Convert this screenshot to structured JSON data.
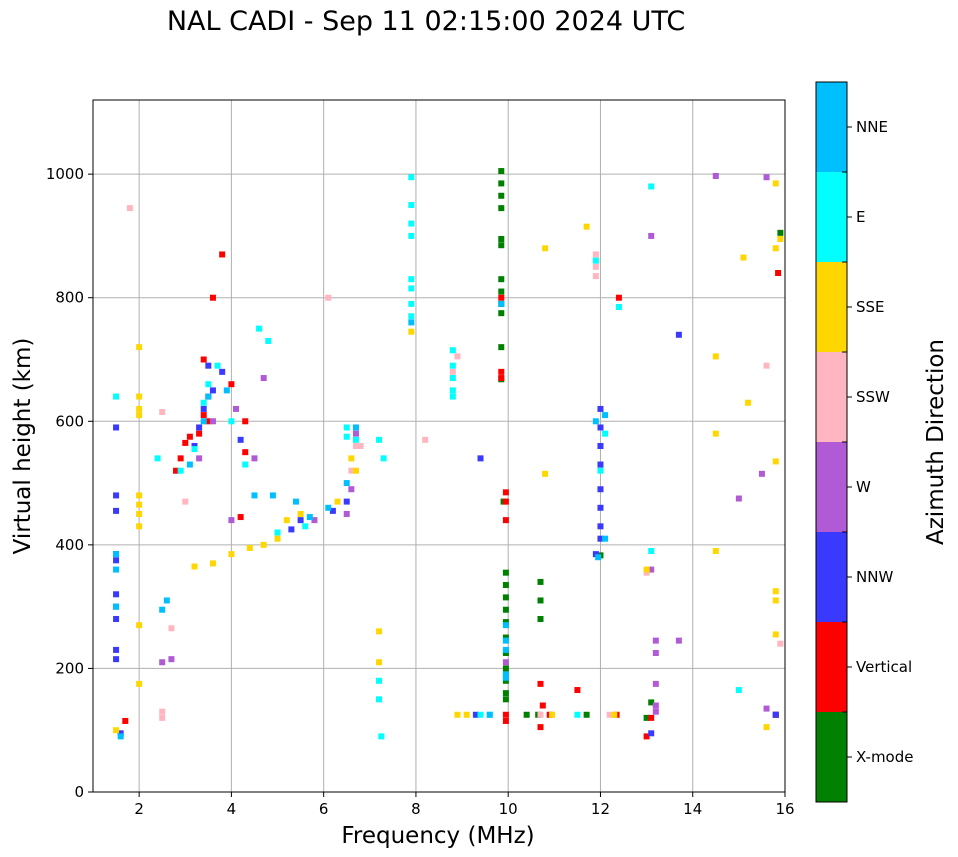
{
  "chart_data": {
    "type": "scatter",
    "title": "NAL CADI - Sep 11 02:15:00 2024 UTC",
    "xlabel": "Frequency (MHz)",
    "ylabel": "Virtual height (km)",
    "xlim": [
      1,
      16
    ],
    "ylim": [
      0,
      1120
    ],
    "xticks": [
      2,
      4,
      6,
      8,
      10,
      12,
      14,
      16
    ],
    "yticks": [
      0,
      200,
      400,
      600,
      800,
      1000
    ],
    "grid": true,
    "colorbar": {
      "label": "Azimuth Direction",
      "categories": [
        {
          "name": "X-mode",
          "color": "#008000"
        },
        {
          "name": "Vertical",
          "color": "#ff0000"
        },
        {
          "name": "NNW",
          "color": "#3a3aff"
        },
        {
          "name": "W",
          "color": "#b05ad6"
        },
        {
          "name": "SSW",
          "color": "#ffb6c1"
        },
        {
          "name": "SSE",
          "color": "#ffd700"
        },
        {
          "name": "E",
          "color": "#00ffff"
        },
        {
          "name": "NNE",
          "color": "#00bfff"
        }
      ]
    },
    "series": [
      {
        "name": "X-mode",
        "points": [
          [
            9.85,
            1005
          ],
          [
            9.85,
            985
          ],
          [
            9.85,
            965
          ],
          [
            9.85,
            945
          ],
          [
            9.85,
            895
          ],
          [
            9.85,
            885
          ],
          [
            9.85,
            830
          ],
          [
            9.85,
            810
          ],
          [
            9.85,
            790
          ],
          [
            9.85,
            775
          ],
          [
            9.85,
            720
          ],
          [
            9.85,
            668
          ],
          [
            9.95,
            355
          ],
          [
            9.95,
            335
          ],
          [
            9.95,
            315
          ],
          [
            9.95,
            295
          ],
          [
            9.95,
            275
          ],
          [
            9.95,
            250
          ],
          [
            9.95,
            225
          ],
          [
            9.95,
            200
          ],
          [
            9.95,
            180
          ],
          [
            9.95,
            160
          ],
          [
            9.95,
            150
          ],
          [
            9.9,
            470
          ],
          [
            10.4,
            125
          ],
          [
            10.65,
            125
          ],
          [
            10.7,
            340
          ],
          [
            10.7,
            310
          ],
          [
            10.7,
            280
          ],
          [
            11.7,
            125
          ],
          [
            12.0,
            383
          ],
          [
            13.0,
            120
          ],
          [
            13.1,
            145
          ],
          [
            15.9,
            905
          ],
          [
            15.8,
            125
          ]
        ]
      },
      {
        "name": "Vertical",
        "points": [
          [
            1.7,
            115
          ],
          [
            3.4,
            700
          ],
          [
            3.5,
            640
          ],
          [
            3.4,
            610
          ],
          [
            3.5,
            600
          ],
          [
            3.6,
            800
          ],
          [
            3.8,
            870
          ],
          [
            3.3,
            580
          ],
          [
            3.0,
            565
          ],
          [
            2.8,
            520
          ],
          [
            2.9,
            540
          ],
          [
            3.1,
            575
          ],
          [
            4.2,
            445
          ],
          [
            4.3,
            550
          ],
          [
            4.0,
            660
          ],
          [
            4.3,
            600
          ],
          [
            9.95,
            485
          ],
          [
            9.95,
            470
          ],
          [
            9.95,
            440
          ],
          [
            9.95,
            125
          ],
          [
            9.95,
            115
          ],
          [
            9.85,
            680
          ],
          [
            9.85,
            670
          ],
          [
            9.85,
            800
          ],
          [
            10.7,
            175
          ],
          [
            10.75,
            140
          ],
          [
            10.7,
            105
          ],
          [
            10.9,
            125
          ],
          [
            11.5,
            165
          ],
          [
            12.4,
            800
          ],
          [
            12.35,
            125
          ],
          [
            13.0,
            90
          ],
          [
            13.1,
            120
          ],
          [
            15.8,
            125
          ],
          [
            15.85,
            840
          ]
        ]
      },
      {
        "name": "NNW",
        "points": [
          [
            1.5,
            385
          ],
          [
            1.5,
            375
          ],
          [
            1.5,
            320
          ],
          [
            1.5,
            300
          ],
          [
            1.5,
            280
          ],
          [
            1.5,
            230
          ],
          [
            1.5,
            215
          ],
          [
            1.5,
            590
          ],
          [
            1.5,
            480
          ],
          [
            1.5,
            455
          ],
          [
            1.6,
            95
          ],
          [
            3.2,
            560
          ],
          [
            3.3,
            590
          ],
          [
            3.4,
            620
          ],
          [
            3.5,
            690
          ],
          [
            3.6,
            650
          ],
          [
            3.8,
            680
          ],
          [
            4.2,
            570
          ],
          [
            5.5,
            440
          ],
          [
            5.3,
            425
          ],
          [
            6.2,
            455
          ],
          [
            6.5,
            470
          ],
          [
            9.4,
            540
          ],
          [
            9.3,
            125
          ],
          [
            12.0,
            620
          ],
          [
            12.0,
            590
          ],
          [
            12.0,
            560
          ],
          [
            12.0,
            530
          ],
          [
            12.0,
            490
          ],
          [
            12.0,
            460
          ],
          [
            12.0,
            430
          ],
          [
            12.0,
            410
          ],
          [
            11.9,
            385
          ],
          [
            13.7,
            740
          ],
          [
            13.1,
            95
          ],
          [
            15.8,
            125
          ]
        ]
      },
      {
        "name": "W",
        "points": [
          [
            2.5,
            210
          ],
          [
            2.7,
            215
          ],
          [
            3.3,
            540
          ],
          [
            3.6,
            600
          ],
          [
            4.0,
            440
          ],
          [
            4.1,
            620
          ],
          [
            4.5,
            540
          ],
          [
            4.7,
            670
          ],
          [
            5.8,
            440
          ],
          [
            6.5,
            450
          ],
          [
            6.6,
            490
          ],
          [
            6.7,
            580
          ],
          [
            9.95,
            190
          ],
          [
            9.95,
            210
          ],
          [
            13.2,
            245
          ],
          [
            13.2,
            225
          ],
          [
            13.2,
            175
          ],
          [
            13.2,
            140
          ],
          [
            13.2,
            130
          ],
          [
            13.1,
            360
          ],
          [
            13.1,
            900
          ],
          [
            13.7,
            245
          ],
          [
            14.5,
            997
          ],
          [
            15.0,
            475
          ],
          [
            15.5,
            515
          ],
          [
            15.6,
            135
          ],
          [
            15.6,
            995
          ]
        ]
      },
      {
        "name": "SSW",
        "points": [
          [
            1.8,
            945
          ],
          [
            2.5,
            130
          ],
          [
            2.5,
            120
          ],
          [
            2.5,
            615
          ],
          [
            2.7,
            265
          ],
          [
            3.0,
            470
          ],
          [
            6.1,
            800
          ],
          [
            6.6,
            520
          ],
          [
            6.7,
            560
          ],
          [
            6.8,
            560
          ],
          [
            8.2,
            570
          ],
          [
            8.9,
            705
          ],
          [
            8.8,
            680
          ],
          [
            10.7,
            125
          ],
          [
            11.9,
            870
          ],
          [
            11.9,
            850
          ],
          [
            11.9,
            835
          ],
          [
            12.2,
            125
          ],
          [
            13.0,
            355
          ],
          [
            15.6,
            690
          ],
          [
            15.9,
            240
          ]
        ]
      },
      {
        "name": "SSE",
        "points": [
          [
            2.0,
            720
          ],
          [
            2.0,
            640
          ],
          [
            2.0,
            620
          ],
          [
            2.0,
            610
          ],
          [
            2.0,
            480
          ],
          [
            2.0,
            465
          ],
          [
            2.0,
            450
          ],
          [
            2.0,
            430
          ],
          [
            2.0,
            270
          ],
          [
            2.0,
            175
          ],
          [
            1.5,
            100
          ],
          [
            3.2,
            365
          ],
          [
            3.6,
            370
          ],
          [
            4.0,
            385
          ],
          [
            4.4,
            395
          ],
          [
            4.7,
            400
          ],
          [
            5.0,
            410
          ],
          [
            5.2,
            440
          ],
          [
            5.5,
            450
          ],
          [
            6.3,
            470
          ],
          [
            6.6,
            540
          ],
          [
            6.7,
            520
          ],
          [
            7.2,
            260
          ],
          [
            7.2,
            210
          ],
          [
            7.9,
            745
          ],
          [
            8.9,
            125
          ],
          [
            9.1,
            125
          ],
          [
            10.8,
            880
          ],
          [
            10.8,
            515
          ],
          [
            10.95,
            125
          ],
          [
            11.7,
            915
          ],
          [
            12.3,
            125
          ],
          [
            13.0,
            360
          ],
          [
            14.5,
            705
          ],
          [
            14.5,
            580
          ],
          [
            14.5,
            390
          ],
          [
            15.1,
            865
          ],
          [
            15.2,
            630
          ],
          [
            15.6,
            105
          ],
          [
            15.8,
            985
          ],
          [
            15.8,
            535
          ],
          [
            15.8,
            325
          ],
          [
            15.8,
            310
          ],
          [
            15.8,
            255
          ],
          [
            15.8,
            880
          ],
          [
            15.9,
            895
          ]
        ]
      },
      {
        "name": "E",
        "points": [
          [
            1.5,
            640
          ],
          [
            2.4,
            540
          ],
          [
            2.9,
            520
          ],
          [
            3.2,
            555
          ],
          [
            3.4,
            630
          ],
          [
            3.5,
            660
          ],
          [
            3.7,
            690
          ],
          [
            4.0,
            600
          ],
          [
            4.3,
            530
          ],
          [
            4.6,
            750
          ],
          [
            4.8,
            730
          ],
          [
            5.0,
            420
          ],
          [
            5.6,
            430
          ],
          [
            6.5,
            590
          ],
          [
            6.5,
            575
          ],
          [
            6.7,
            570
          ],
          [
            7.2,
            570
          ],
          [
            7.3,
            540
          ],
          [
            7.2,
            180
          ],
          [
            7.2,
            150
          ],
          [
            7.25,
            90
          ],
          [
            7.9,
            995
          ],
          [
            7.9,
            950
          ],
          [
            7.9,
            920
          ],
          [
            7.9,
            900
          ],
          [
            7.9,
            830
          ],
          [
            7.9,
            815
          ],
          [
            7.9,
            790
          ],
          [
            7.9,
            770
          ],
          [
            8.8,
            715
          ],
          [
            8.8,
            690
          ],
          [
            8.8,
            670
          ],
          [
            8.8,
            650
          ],
          [
            8.8,
            640
          ],
          [
            9.4,
            125
          ],
          [
            9.6,
            125
          ],
          [
            11.5,
            125
          ],
          [
            11.9,
            860
          ],
          [
            12.1,
            580
          ],
          [
            12.0,
            520
          ],
          [
            12.4,
            785
          ],
          [
            13.1,
            980
          ],
          [
            13.1,
            390
          ],
          [
            15.0,
            165
          ]
        ]
      },
      {
        "name": "NNE",
        "points": [
          [
            1.5,
            385
          ],
          [
            1.5,
            360
          ],
          [
            1.5,
            300
          ],
          [
            1.6,
            90
          ],
          [
            2.5,
            295
          ],
          [
            2.6,
            310
          ],
          [
            3.1,
            530
          ],
          [
            3.4,
            600
          ],
          [
            3.5,
            640
          ],
          [
            3.9,
            650
          ],
          [
            4.5,
            480
          ],
          [
            4.9,
            480
          ],
          [
            5.4,
            470
          ],
          [
            5.7,
            445
          ],
          [
            6.1,
            460
          ],
          [
            6.5,
            500
          ],
          [
            6.7,
            590
          ],
          [
            7.9,
            760
          ],
          [
            9.95,
            270
          ],
          [
            9.95,
            245
          ],
          [
            9.95,
            230
          ],
          [
            9.95,
            190
          ],
          [
            9.95,
            185
          ],
          [
            9.6,
            125
          ],
          [
            9.85,
            790
          ],
          [
            11.9,
            600
          ],
          [
            12.1,
            610
          ],
          [
            12.1,
            410
          ],
          [
            11.95,
            380
          ]
        ]
      }
    ]
  }
}
